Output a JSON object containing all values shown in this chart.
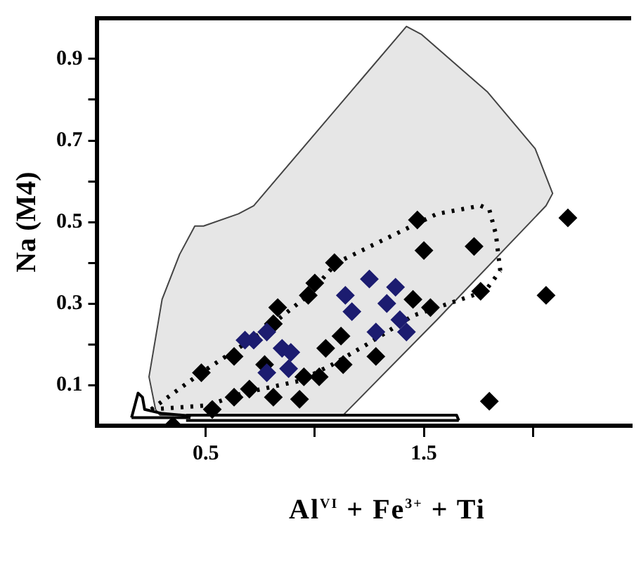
{
  "chart_data": {
    "type": "scatter",
    "xlabel": "Al$^{VI}$ + Fe$^{3+}$ + Ti",
    "ylabel": "Na (M4)",
    "xlim": [
      0,
      2.45
    ],
    "ylim": [
      0,
      1
    ],
    "xticks": [
      0.5,
      {
        "value": 1,
        "label": null
      },
      1.5,
      {
        "value": 2,
        "label": null
      }
    ],
    "yticks": [
      {
        "value": 0.1,
        "label": "0.1"
      },
      {
        "value": 0.2,
        "label": null
      },
      {
        "value": 0.3,
        "label": "0.3"
      },
      {
        "value": 0.4,
        "label": null
      },
      {
        "value": 0.5,
        "label": "0.5"
      },
      {
        "value": 0.6,
        "label": null
      },
      {
        "value": 0.7,
        "label": "0.7"
      },
      {
        "value": 0.8,
        "label": null
      },
      {
        "value": 0.9,
        "label": "0.9"
      }
    ],
    "grid": false,
    "legend": false,
    "series": [
      {
        "type": "area",
        "color": "#e6e6e6",
        "marker": "none",
        "x": [
          0.27,
          0.24,
          0.3,
          0.38,
          0.45,
          0.49,
          0.65,
          0.72,
          1.42,
          1.49,
          1.79,
          2.01,
          2.09,
          2.06,
          1.56,
          1.13,
          0.43,
          0.29,
          0.27
        ],
        "values": [
          0.04,
          0.12,
          0.31,
          0.42,
          0.49,
          0.49,
          0.52,
          0.54,
          0.98,
          0.96,
          0.82,
          0.68,
          0.57,
          0.54,
          0.26,
          0.026,
          0.026,
          0.026,
          0.04
        ]
      },
      {
        "type": "line",
        "color": "#000000",
        "marker": "none",
        "line_style": "dotted",
        "x": [
          0.25,
          0.48,
          0.76,
          0.97,
          1.1,
          1.33,
          1.56,
          1.76,
          1.8,
          1.83,
          1.85
        ],
        "values": [
          0.04,
          0.13,
          0.23,
          0.32,
          0.4,
          0.46,
          0.52,
          0.54,
          0.53,
          0.47,
          0.38
        ]
      },
      {
        "type": "line",
        "color": "#000000",
        "marker": "none",
        "line_style": "dotted",
        "x": [
          0.25,
          0.51,
          0.67,
          0.93,
          1.08,
          1.24,
          1.45,
          1.78,
          1.85
        ],
        "values": [
          0.04,
          0.05,
          0.08,
          0.11,
          0.15,
          0.2,
          0.27,
          0.33,
          0.38
        ]
      },
      {
        "type": "line",
        "color": "#000000",
        "marker": "none",
        "line_style": "solid",
        "x": [
          0.16,
          0.19,
          0.21,
          0.22,
          0.3,
          0.41,
          0.43
        ],
        "values": [
          0.02,
          0.08,
          0.07,
          0.04,
          0.03,
          0.025,
          0.02
        ]
      },
      {
        "type": "line",
        "color": "#000000",
        "marker": "none",
        "line_style": "solid",
        "x": [
          0.16,
          0.43
        ],
        "values": [
          0.02,
          0.02
        ]
      },
      {
        "type": "line",
        "color": "#000000",
        "marker": "none",
        "line_style": "solid",
        "x": [
          0.41,
          1.65,
          1.66
        ],
        "values": [
          0.026,
          0.026,
          0.013
        ]
      },
      {
        "type": "line",
        "color": "#000000",
        "marker": "none",
        "line_style": "solid",
        "x": [
          0.41,
          1.66
        ],
        "values": [
          0.013,
          0.013
        ]
      },
      {
        "type": "scatter",
        "color": "#000000",
        "marker": "diamond",
        "x": [
          1.47,
          2.16,
          1.5,
          1.73,
          1.09,
          1.0,
          0.97,
          2.06,
          1.76,
          1.45,
          1.53,
          0.83,
          0.81,
          0.63,
          0.48,
          1.05,
          1.12,
          1.13,
          1.28,
          0.95,
          1.02,
          0.77,
          0.81,
          0.93,
          0.63,
          0.7,
          1.8,
          0.53,
          0.35
        ],
        "values": [
          0.505,
          0.51,
          0.43,
          0.44,
          0.4,
          0.35,
          0.32,
          0.32,
          0.33,
          0.31,
          0.29,
          0.29,
          0.25,
          0.17,
          0.13,
          0.19,
          0.22,
          0.15,
          0.17,
          0.12,
          0.12,
          0.15,
          0.07,
          0.065,
          0.07,
          0.09,
          0.06,
          0.04,
          0.0
        ]
      },
      {
        "type": "scatter",
        "color": "#1c1c70",
        "marker": "diamond",
        "x": [
          1.25,
          1.14,
          1.17,
          1.37,
          1.33,
          1.39,
          1.42,
          1.28,
          0.78,
          0.72,
          0.68,
          0.85,
          0.89,
          0.88,
          0.78
        ],
        "values": [
          0.36,
          0.32,
          0.28,
          0.34,
          0.3,
          0.26,
          0.23,
          0.23,
          0.23,
          0.21,
          0.21,
          0.19,
          0.18,
          0.14,
          0.13
        ]
      }
    ]
  }
}
